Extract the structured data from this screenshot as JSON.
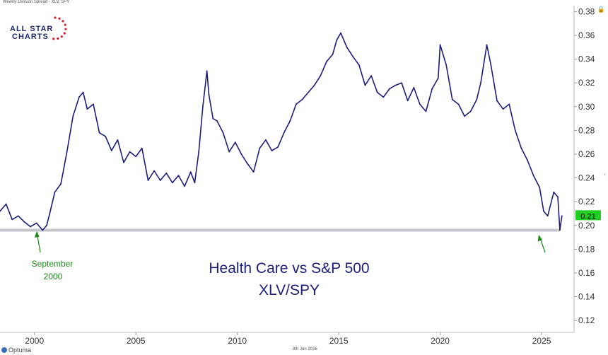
{
  "header": {
    "title": "Weekly Division Spread - XLV, SPY"
  },
  "logo": {
    "line1": "ALL STAR",
    "line2": "CHARTS"
  },
  "footer": {
    "brand": "Optuma",
    "date": "8th Jun 2026"
  },
  "annotations": {
    "left_label_line1": "September",
    "left_label_line2": "2000",
    "center_title_line1": "Health Care vs S&P 500",
    "center_title_line2": "XLV/SPY"
  },
  "colors": {
    "series": "#1b1e7a",
    "accent_green": "#1a8a1a",
    "last_value_bg": "#22cc22",
    "support": "#c5c7cc"
  },
  "chart_data": {
    "type": "line",
    "title": "Health Care vs S&P 500 XLV/SPY",
    "xlabel": "",
    "ylabel": "",
    "xlim": [
      1998.3,
      2026.6
    ],
    "ylim": [
      0.11,
      0.385
    ],
    "x_ticks": [
      2000,
      2005,
      2010,
      2015,
      2020,
      2025
    ],
    "y_ticks": [
      0.12,
      0.14,
      0.16,
      0.18,
      0.2,
      0.22,
      0.24,
      0.26,
      0.28,
      0.3,
      0.32,
      0.34,
      0.36,
      0.38
    ],
    "support_level": 0.196,
    "last_value": "0.21",
    "grid": false,
    "series": [
      {
        "x": [
          1998.3,
          1998.6,
          1998.9,
          1999.2,
          1999.5,
          1999.8,
          2000.1,
          2000.4,
          2000.6,
          2000.75,
          2001.0,
          2001.3,
          2001.6,
          2001.9,
          2002.2,
          2002.4,
          2002.6,
          2002.9,
          2003.2,
          2003.5,
          2003.8,
          2004.1,
          2004.4,
          2004.7,
          2005.0,
          2005.3,
          2005.6,
          2005.9,
          2006.2,
          2006.5,
          2006.8,
          2007.1,
          2007.4,
          2007.7,
          2007.9,
          2008.1,
          2008.3,
          2008.5,
          2008.6,
          2008.8,
          2009.0,
          2009.3,
          2009.6,
          2009.9,
          2010.2,
          2010.5,
          2010.8,
          2011.1,
          2011.4,
          2011.7,
          2012.0,
          2012.3,
          2012.6,
          2012.9,
          2013.2,
          2013.5,
          2013.8,
          2014.1,
          2014.4,
          2014.7,
          2014.9,
          2015.1,
          2015.4,
          2015.7,
          2016.0,
          2016.3,
          2016.6,
          2016.9,
          2017.2,
          2017.5,
          2017.8,
          2018.1,
          2018.4,
          2018.7,
          2019.0,
          2019.3,
          2019.6,
          2019.9,
          2020.0,
          2020.3,
          2020.6,
          2020.9,
          2021.2,
          2021.5,
          2021.8,
          2022.0,
          2022.3,
          2022.5,
          2022.8,
          2023.1,
          2023.4,
          2023.7,
          2024.0,
          2024.3,
          2024.6,
          2024.9,
          2025.1,
          2025.3,
          2025.6,
          2025.8,
          2025.9,
          2026.0
        ],
        "values": [
          0.212,
          0.218,
          0.205,
          0.208,
          0.203,
          0.199,
          0.202,
          0.196,
          0.2,
          0.21,
          0.228,
          0.235,
          0.262,
          0.292,
          0.308,
          0.312,
          0.298,
          0.302,
          0.278,
          0.275,
          0.263,
          0.272,
          0.253,
          0.262,
          0.258,
          0.265,
          0.238,
          0.246,
          0.238,
          0.244,
          0.236,
          0.242,
          0.233,
          0.245,
          0.236,
          0.262,
          0.3,
          0.33,
          0.31,
          0.29,
          0.288,
          0.278,
          0.262,
          0.27,
          0.26,
          0.252,
          0.245,
          0.265,
          0.272,
          0.263,
          0.266,
          0.278,
          0.288,
          0.302,
          0.306,
          0.312,
          0.318,
          0.326,
          0.338,
          0.344,
          0.356,
          0.362,
          0.35,
          0.342,
          0.335,
          0.318,
          0.326,
          0.312,
          0.308,
          0.315,
          0.318,
          0.32,
          0.305,
          0.316,
          0.302,
          0.296,
          0.315,
          0.324,
          0.352,
          0.335,
          0.306,
          0.302,
          0.292,
          0.296,
          0.306,
          0.32,
          0.352,
          0.335,
          0.305,
          0.298,
          0.302,
          0.28,
          0.265,
          0.255,
          0.242,
          0.232,
          0.212,
          0.208,
          0.228,
          0.224,
          0.196,
          0.208
        ]
      }
    ]
  }
}
